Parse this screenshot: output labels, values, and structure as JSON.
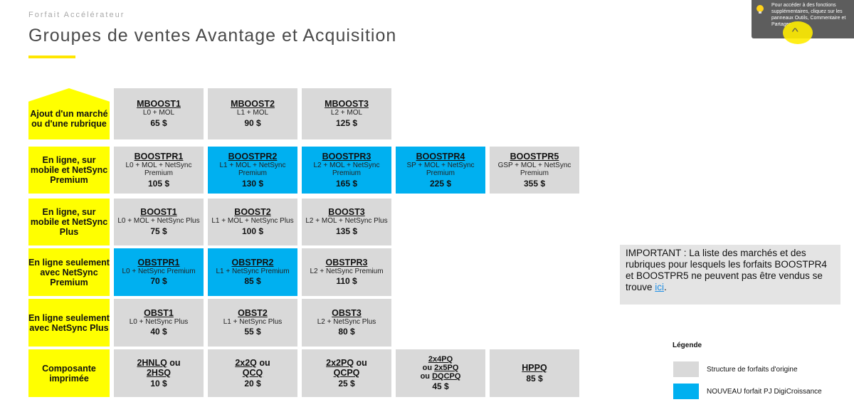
{
  "header": {
    "subtitle": "Forfait Accélérateur",
    "title": "Groupes de ventes Avantage et Acquisition"
  },
  "tooltip": {
    "text": "Pour accéder à des fonctions supplémentaires, cliquez sur les panneaux Outils, Commentaire et Partager."
  },
  "rows": [
    {
      "label": "Ajout d'un marché ou d'une rubrique"
    },
    {
      "label": "En ligne, sur mobile et NetSync Premium"
    },
    {
      "label": "En ligne, sur mobile et NetSync Plus"
    },
    {
      "label": "En ligne seulement avec NetSync Premium"
    },
    {
      "label": "En ligne seulement avec NetSync Plus"
    },
    {
      "label": "Composante imprimée"
    }
  ],
  "cells": {
    "r0": [
      {
        "code": "MBOOST1",
        "desc": "L0 + MOL",
        "price": "65 $"
      },
      {
        "code": "MBOOST2",
        "desc": "L1 + MOL",
        "price": "90 $"
      },
      {
        "code": "MBOOST3",
        "desc": "L2 + MOL",
        "price": "125 $"
      }
    ],
    "r1": [
      {
        "code": "BOOSTPR1",
        "desc": "L0 + MOL + NetSync Premium",
        "price": "105 $"
      },
      {
        "code": "BOOSTPR2",
        "desc": "L1 + MOL + NetSync Premium",
        "price": "130 $"
      },
      {
        "code": "BOOSTPR3",
        "desc": "L2 + MOL + NetSync Premium",
        "price": "165 $"
      },
      {
        "code": "BOOSTPR4",
        "desc": "SP + MOL + NetSync Premium",
        "price": "225 $"
      },
      {
        "code": "BOOSTPR5",
        "desc": "GSP + MOL + NetSync Premium",
        "price": "355 $"
      }
    ],
    "r2": [
      {
        "code": "BOOST1",
        "desc": "L0 + MOL + NetSync Plus",
        "price": "75 $"
      },
      {
        "code": "BOOST2",
        "desc": "L1 + MOL + NetSync Plus",
        "price": "100 $"
      },
      {
        "code": "BOOST3",
        "desc": "L2 + MOL + NetSync Plus",
        "price": "135 $"
      }
    ],
    "r3": [
      {
        "code": "OBSTPR1",
        "desc": "L0 + NetSync Premium",
        "price": "70 $"
      },
      {
        "code": "OBSTPR2",
        "desc": "L1 + NetSync Premium",
        "price": "85 $"
      },
      {
        "code": "OBSTPR3",
        "desc": "L2 + NetSync Premium",
        "price": "110 $"
      }
    ],
    "r4": [
      {
        "code": "OBST1",
        "desc": "L0 + NetSync Plus",
        "price": "40 $"
      },
      {
        "code": "OBST2",
        "desc": "L1 + NetSync Plus",
        "price": "55 $"
      },
      {
        "code": "OBST3",
        "desc": "L2 + NetSync Plus",
        "price": "80 $"
      }
    ],
    "r5": [
      {
        "code_a": "2HNLQ",
        "join": " ou",
        "code_b": "2HSQ",
        "price": "10 $"
      },
      {
        "code_a": "2x2Q",
        "join": " ou",
        "code_b": "QCQ",
        "price": "20 $"
      },
      {
        "code_a": "2x2PQ",
        "join": " ou",
        "code_b": "QCPQ",
        "price": "25 $"
      },
      {
        "code_a": "2x4PQ",
        "mid_prefix": "ou ",
        "code_b": "2x5PQ",
        "join2": "ou ",
        "code_c": "DQCPQ",
        "price": "45 $"
      },
      {
        "code_a": "HPPQ",
        "price": "85 $"
      }
    ]
  },
  "important": {
    "text": "IMPORTANT : La liste des marchés et des rubriques pour lesquels les forfaits BOOSTPR4 et BOOSTPR5 ne peuvent pas être vendus se trouve ",
    "link": "ici",
    "end": "."
  },
  "legend": {
    "title": "Légende",
    "items": [
      {
        "label": "Structure de forfaits d'origine",
        "color": "#d9d9d9"
      },
      {
        "label": "NOUVEAU forfait PJ DigiCroissance",
        "color": "#00b0f0"
      }
    ]
  },
  "colors": {
    "accent": "#ffe600",
    "new": "#00b0f0",
    "origin": "#d9d9d9",
    "label": "#ffff00"
  }
}
